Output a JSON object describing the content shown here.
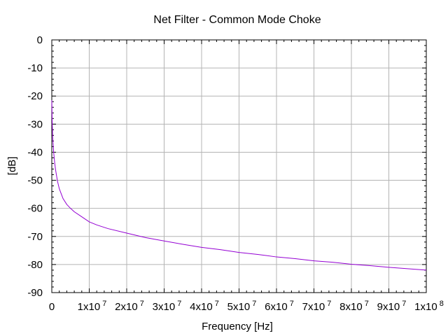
{
  "chart_data": {
    "type": "line",
    "title": "Net Filter - Common Mode Choke",
    "xlabel": "Frequency [Hz]",
    "ylabel": "[dB]",
    "xlim": [
      0,
      100000000
    ],
    "ylim": [
      -90,
      0
    ],
    "grid": true,
    "x_tick_labels": [
      {
        "value": 0,
        "base": "0",
        "exp": ""
      },
      {
        "value": 10000000,
        "base": "1x10",
        "exp": "7"
      },
      {
        "value": 20000000,
        "base": "2x10",
        "exp": "7"
      },
      {
        "value": 30000000,
        "base": "3x10",
        "exp": "7"
      },
      {
        "value": 40000000,
        "base": "4x10",
        "exp": "7"
      },
      {
        "value": 50000000,
        "base": "5x10",
        "exp": "7"
      },
      {
        "value": 60000000,
        "base": "6x10",
        "exp": "7"
      },
      {
        "value": 70000000,
        "base": "7x10",
        "exp": "7"
      },
      {
        "value": 80000000,
        "base": "8x10",
        "exp": "7"
      },
      {
        "value": 90000000,
        "base": "9x10",
        "exp": "7"
      },
      {
        "value": 100000000,
        "base": "1x10",
        "exp": "8"
      }
    ],
    "y_tick_labels": [
      "0",
      "-10",
      "-20",
      "-30",
      "-40",
      "-50",
      "-60",
      "-70",
      "-80",
      "-90"
    ],
    "y_tick_values": [
      0,
      -10,
      -20,
      -30,
      -40,
      -50,
      -60,
      -70,
      -80,
      -90
    ],
    "series": [
      {
        "color": "#9400d3",
        "x": [
          0,
          100000,
          250000,
          500000,
          750000,
          1000000,
          1500000,
          2000000,
          3000000,
          4000000,
          5000000,
          6000000,
          8000000,
          10000000,
          12000000,
          15000000,
          20000000,
          25000000,
          30000000,
          35000000,
          40000000,
          45000000,
          50000000,
          55000000,
          60000000,
          65000000,
          70000000,
          75000000,
          80000000,
          85000000,
          90000000,
          95000000,
          100000000
        ],
        "y": [
          -21.5,
          -29,
          -35,
          -40,
          -43.5,
          -46.2,
          -50.2,
          -53.0,
          -56.5,
          -58.6,
          -60.0,
          -61.2,
          -63.0,
          -64.8,
          -65.9,
          -67.2,
          -68.8,
          -70.4,
          -71.6,
          -72.8,
          -73.9,
          -74.7,
          -75.7,
          -76.4,
          -77.3,
          -77.9,
          -78.7,
          -79.2,
          -79.9,
          -80.4,
          -81.0,
          -81.5,
          -82.0
        ]
      }
    ]
  }
}
